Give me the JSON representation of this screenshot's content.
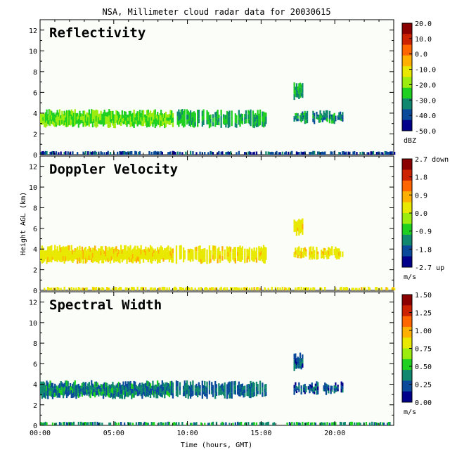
{
  "title": "NSA, Millimeter cloud radar data for 20030615",
  "ylabel": "Height AGL (km)",
  "xlabel": "Time (hours, GMT)",
  "x_ticks": [
    {
      "value": 0,
      "label": "00:00"
    },
    {
      "value": 5,
      "label": "05:00"
    },
    {
      "value": 10,
      "label": "10:00"
    },
    {
      "value": 15,
      "label": "15:00"
    },
    {
      "value": 20,
      "label": "20:00"
    }
  ],
  "y_ticks": [
    "0",
    "2",
    "4",
    "6",
    "8",
    "10",
    "12"
  ],
  "panels": [
    {
      "name": "Reflectivity",
      "unit": "dBZ",
      "scale_labels": [
        "20.0",
        "10.0",
        "0.0",
        "-10.0",
        "-20.0",
        "-30.0",
        "-40.0",
        "-50.0"
      ],
      "colors": [
        "#8b0000",
        "#cc2200",
        "#ff6600",
        "#ffb000",
        "#e8e800",
        "#9cec10",
        "#20d020",
        "#108870",
        "#0a4a9a",
        "#00008b"
      ]
    },
    {
      "name": "Doppler Velocity",
      "unit": "m/s",
      "scale_labels": [
        "2.7 down",
        "1.8",
        "0.9",
        "0.0",
        "-0.9",
        "-1.8",
        "-2.7 up"
      ],
      "colors": [
        "#8b0000",
        "#cc2200",
        "#ff6600",
        "#ffb000",
        "#e8e800",
        "#9cec10",
        "#20d020",
        "#108870",
        "#0a4a9a",
        "#00008b"
      ]
    },
    {
      "name": "Spectral Width",
      "unit": "m/s",
      "scale_labels": [
        "1.50",
        "1.25",
        "1.00",
        "0.75",
        "0.50",
        "0.25",
        "0.00"
      ],
      "colors": [
        "#8b0000",
        "#cc2200",
        "#ff6600",
        "#ffb000",
        "#e8e800",
        "#9cec10",
        "#20d020",
        "#108870",
        "#0a4a9a",
        "#00008b"
      ]
    }
  ],
  "chart_data": [
    {
      "type": "heatmap",
      "title": "Reflectivity",
      "xlabel": "Time (hours, GMT)",
      "ylabel": "Height AGL (km)",
      "xlim": [
        0,
        24
      ],
      "ylim": [
        0,
        13
      ],
      "colorbar": {
        "min": -50,
        "max": 20,
        "unit": "dBZ"
      },
      "features": [
        {
          "kind": "cloud_layer",
          "t_start": 0.0,
          "t_end": 9.0,
          "z_bottom_km": 2.8,
          "z_top_km": 4.1,
          "typical_dbz": -22
        },
        {
          "kind": "cloud_segments",
          "t_start": 9.2,
          "t_end": 15.3,
          "z_bottom_km": 2.8,
          "z_top_km": 4.1,
          "typical_dbz": -28
        },
        {
          "kind": "isolated_cloud",
          "t_start": 17.2,
          "t_end": 17.8,
          "z_bottom_km": 5.5,
          "z_top_km": 6.8,
          "typical_dbz": -30
        },
        {
          "kind": "cloud_segments",
          "t_start": 17.2,
          "t_end": 20.5,
          "z_bottom_km": 3.2,
          "z_top_km": 4.0,
          "typical_dbz": -32
        },
        {
          "kind": "near_surface_returns",
          "t_start": 0.0,
          "t_end": 24.0,
          "z_bottom_km": 0.0,
          "z_top_km": 0.3,
          "typical_dbz": -40
        }
      ]
    },
    {
      "type": "heatmap",
      "title": "Doppler Velocity",
      "xlabel": "Time (hours, GMT)",
      "ylabel": "Height AGL (km)",
      "xlim": [
        0,
        24
      ],
      "ylim": [
        0,
        13
      ],
      "colorbar": {
        "min": -2.7,
        "max": 2.7,
        "unit": "m/s"
      },
      "features": [
        {
          "kind": "cloud_layer",
          "t_start": 0.0,
          "t_end": 9.0,
          "z_bottom_km": 2.8,
          "z_top_km": 4.1,
          "typical_velocity": 0.3
        },
        {
          "kind": "cloud_segments",
          "t_start": 9.2,
          "t_end": 15.3,
          "z_bottom_km": 2.8,
          "z_top_km": 4.1,
          "typical_velocity": 0.3
        },
        {
          "kind": "isolated_cloud",
          "t_start": 17.2,
          "t_end": 17.8,
          "z_bottom_km": 5.5,
          "z_top_km": 6.8,
          "typical_velocity": 0.3
        },
        {
          "kind": "cloud_segments",
          "t_start": 17.2,
          "t_end": 20.5,
          "z_bottom_km": 3.2,
          "z_top_km": 4.0,
          "typical_velocity": 0.3
        },
        {
          "kind": "near_surface_returns",
          "t_start": 0.0,
          "t_end": 24.0,
          "z_bottom_km": 0.0,
          "z_top_km": 0.3,
          "typical_velocity": 0.3
        }
      ]
    },
    {
      "type": "heatmap",
      "title": "Spectral Width",
      "xlabel": "Time (hours, GMT)",
      "ylabel": "Height AGL (km)",
      "xlim": [
        0,
        24
      ],
      "ylim": [
        0,
        13
      ],
      "colorbar": {
        "min": 0.0,
        "max": 1.5,
        "unit": "m/s"
      },
      "features": [
        {
          "kind": "cloud_layer",
          "t_start": 0.0,
          "t_end": 9.0,
          "z_bottom_km": 2.8,
          "z_top_km": 4.1,
          "typical_width": 0.35
        },
        {
          "kind": "cloud_segments",
          "t_start": 9.2,
          "t_end": 15.3,
          "z_bottom_km": 2.8,
          "z_top_km": 4.1,
          "typical_width": 0.3
        },
        {
          "kind": "isolated_cloud",
          "t_start": 17.2,
          "t_end": 17.8,
          "z_bottom_km": 5.5,
          "z_top_km": 6.8,
          "typical_width": 0.25
        },
        {
          "kind": "cloud_segments",
          "t_start": 17.2,
          "t_end": 20.5,
          "z_bottom_km": 3.2,
          "z_top_km": 4.0,
          "typical_width": 0.25
        },
        {
          "kind": "near_surface_returns",
          "t_start": 0.0,
          "t_end": 24.0,
          "z_bottom_km": 0.0,
          "z_top_km": 0.3,
          "typical_width": 0.4
        }
      ]
    }
  ]
}
